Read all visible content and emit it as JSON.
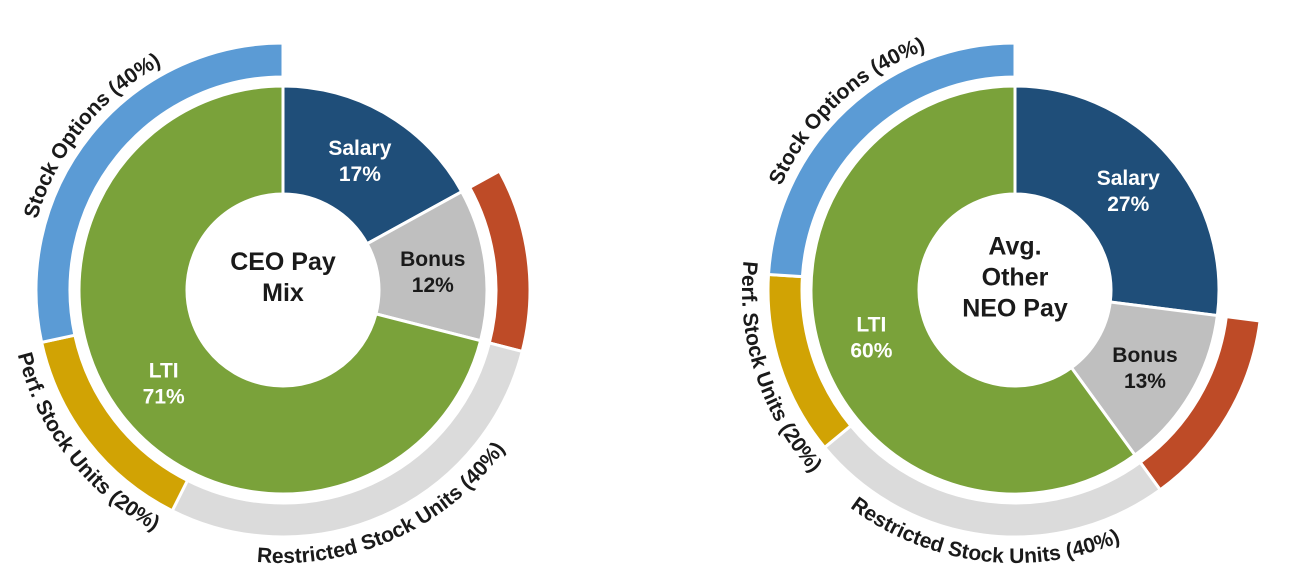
{
  "page": {
    "background": "#FFFFFF"
  },
  "chart_data": [
    {
      "type": "pie",
      "variant": "nested-donut",
      "title": "CEO Pay Mix",
      "title_multiline": "CEO Pay\nMix",
      "legend_position": "none",
      "inner_ring": [
        {
          "label": "Salary",
          "value_pct": 17,
          "display": "Salary 17%",
          "color": "#1F4E79",
          "label_color": "#FFFFFF"
        },
        {
          "label": "Bonus",
          "value_pct": 12,
          "display": "Bonus 12%",
          "color": "#BFBFBF",
          "label_color": "#1A1A1A"
        },
        {
          "label": "LTI",
          "value_pct": 71,
          "display": "LTI 71%",
          "color": "#7AA23A",
          "label_color": "#FFFFFF"
        }
      ],
      "outer_ring": [
        {
          "label": "",
          "value_pct": 17,
          "color": "none"
        },
        {
          "label": "",
          "value_pct": 12,
          "color": "#BE4B27"
        },
        {
          "label": "Restricted Stock Units (40%)",
          "value_pct": 28.4,
          "color": "#DBDBDB"
        },
        {
          "label": "Perf. Stock Units (20%)",
          "value_pct": 14.2,
          "color": "#D1A304"
        },
        {
          "label": "Stock Options (40%)",
          "value_pct": 28.4,
          "color": "#5B9BD5"
        }
      ]
    },
    {
      "type": "pie",
      "variant": "nested-donut",
      "title": "Avg. Other NEO Pay",
      "title_multiline": "Avg.\nOther\nNEO Pay",
      "legend_position": "none",
      "inner_ring": [
        {
          "label": "Salary",
          "value_pct": 27,
          "display": "Salary 27%",
          "color": "#1F4E79",
          "label_color": "#FFFFFF"
        },
        {
          "label": "Bonus",
          "value_pct": 13,
          "display": "Bonus 13%",
          "color": "#BFBFBF",
          "label_color": "#1A1A1A"
        },
        {
          "label": "LTI",
          "value_pct": 60,
          "display": "LTI 60%",
          "color": "#7AA23A",
          "label_color": "#FFFFFF"
        }
      ],
      "outer_ring": [
        {
          "label": "",
          "value_pct": 27,
          "color": "none"
        },
        {
          "label": "",
          "value_pct": 13,
          "color": "#BE4B27"
        },
        {
          "label": "Restricted Stock Units (40%)",
          "value_pct": 24,
          "color": "#DBDBDB"
        },
        {
          "label": "Perf. Stock Units (20%)",
          "value_pct": 12,
          "color": "#D1A304"
        },
        {
          "label": "Stock Options (40%)",
          "value_pct": 24,
          "color": "#5B9BD5"
        }
      ]
    }
  ]
}
